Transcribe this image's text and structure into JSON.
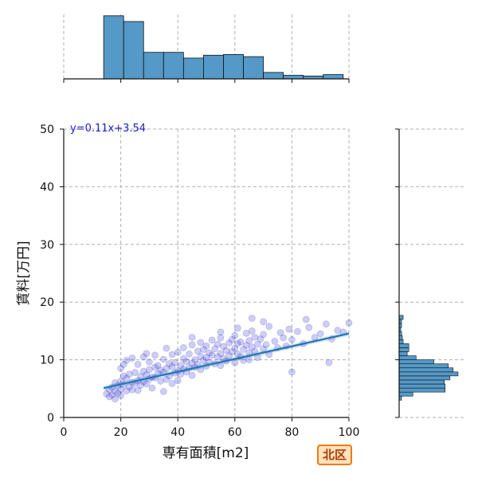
{
  "chart_data": [
    {
      "type": "scatter",
      "role": "joint",
      "xlabel": "専有面積[m2]",
      "ylabel": "賃料[万円]",
      "xlim": [
        0,
        100
      ],
      "ylim": [
        0,
        50
      ],
      "x_ticks": [
        "0",
        "20",
        "40",
        "60",
        "80",
        "100"
      ],
      "y_ticks": [
        "0",
        "10",
        "20",
        "30",
        "40",
        "50"
      ],
      "grid": true,
      "regression": {
        "equation": "y=0.11x+3.54",
        "slope": 0.11,
        "intercept": 3.54,
        "x_range": [
          14,
          100
        ],
        "color": "#1f77b4"
      },
      "point_color": "#3b3bd4",
      "points": [
        [
          15,
          4.1
        ],
        [
          16,
          3.6
        ],
        [
          16,
          4.8
        ],
        [
          17,
          5.2
        ],
        [
          17,
          3.9
        ],
        [
          18,
          4.5
        ],
        [
          18,
          6.0
        ],
        [
          18,
          3.2
        ],
        [
          19,
          5.5
        ],
        [
          19,
          4.2
        ],
        [
          20,
          6.3
        ],
        [
          20,
          4.9
        ],
        [
          20,
          8.5
        ],
        [
          20,
          3.8
        ],
        [
          21,
          5.7
        ],
        [
          21,
          7.2
        ],
        [
          22,
          4.6
        ],
        [
          22,
          6.8
        ],
        [
          22,
          9.9
        ],
        [
          23,
          5.3
        ],
        [
          23,
          7.5
        ],
        [
          24,
          4.8
        ],
        [
          24,
          6.1
        ],
        [
          24,
          10.3
        ],
        [
          25,
          5.9
        ],
        [
          25,
          7.8
        ],
        [
          26,
          6.4
        ],
        [
          26,
          4.7
        ],
        [
          26,
          9.2
        ],
        [
          27,
          7.1
        ],
        [
          27,
          5.6
        ],
        [
          28,
          8.0
        ],
        [
          28,
          6.2
        ],
        [
          28,
          10.5
        ],
        [
          29,
          7.4
        ],
        [
          29,
          5.8
        ],
        [
          30,
          8.3
        ],
        [
          30,
          6.7
        ],
        [
          30,
          9.6
        ],
        [
          31,
          7.0
        ],
        [
          31,
          5.1
        ],
        [
          32,
          8.7
        ],
        [
          32,
          6.9
        ],
        [
          32,
          10.8
        ],
        [
          33,
          7.6
        ],
        [
          33,
          9.0
        ],
        [
          34,
          6.3
        ],
        [
          34,
          8.2
        ],
        [
          35,
          7.8
        ],
        [
          35,
          4.5
        ],
        [
          35,
          10.1
        ],
        [
          36,
          8.5
        ],
        [
          36,
          6.6
        ],
        [
          37,
          9.3
        ],
        [
          37,
          7.2
        ],
        [
          38,
          8.8
        ],
        [
          38,
          10.9
        ],
        [
          38,
          5.9
        ],
        [
          39,
          7.7
        ],
        [
          39,
          9.5
        ],
        [
          40,
          8.1
        ],
        [
          40,
          6.4
        ],
        [
          40,
          11.3
        ],
        [
          41,
          9.0
        ],
        [
          41,
          7.5
        ],
        [
          42,
          10.2
        ],
        [
          42,
          8.4
        ],
        [
          42,
          12.1
        ],
        [
          43,
          7.9
        ],
        [
          43,
          9.7
        ],
        [
          44,
          8.6
        ],
        [
          44,
          11.0
        ],
        [
          45,
          9.4
        ],
        [
          45,
          7.3
        ],
        [
          45,
          12.6
        ],
        [
          46,
          10.0
        ],
        [
          46,
          8.7
        ],
        [
          47,
          11.5
        ],
        [
          47,
          9.2
        ],
        [
          48,
          10.6
        ],
        [
          48,
          8.3
        ],
        [
          48,
          13.0
        ],
        [
          49,
          9.9
        ],
        [
          49,
          11.8
        ],
        [
          50,
          10.4
        ],
        [
          50,
          8.9
        ],
        [
          50,
          12.4
        ],
        [
          51,
          9.6
        ],
        [
          51,
          11.2
        ],
        [
          52,
          10.8
        ],
        [
          52,
          13.4
        ],
        [
          53,
          9.3
        ],
        [
          53,
          11.9
        ],
        [
          54,
          10.5
        ],
        [
          54,
          12.7
        ],
        [
          55,
          11.1
        ],
        [
          55,
          9.0
        ],
        [
          55,
          13.8
        ],
        [
          56,
          10.2
        ],
        [
          56,
          12.3
        ],
        [
          57,
          11.6
        ],
        [
          57,
          9.8
        ],
        [
          58,
          12.9
        ],
        [
          58,
          10.7
        ],
        [
          59,
          11.4
        ],
        [
          59,
          13.5
        ],
        [
          60,
          12.0
        ],
        [
          60,
          9.5
        ],
        [
          60,
          14.2
        ],
        [
          61,
          11.0
        ],
        [
          61,
          12.8
        ],
        [
          62,
          10.6
        ],
        [
          62,
          13.1
        ],
        [
          63,
          11.8
        ],
        [
          63,
          9.9
        ],
        [
          64,
          12.5
        ],
        [
          64,
          14.6
        ],
        [
          65,
          11.2
        ],
        [
          65,
          13.3
        ],
        [
          65,
          10.0
        ],
        [
          66,
          12.2
        ],
        [
          66,
          15.0
        ],
        [
          67,
          11.5
        ],
        [
          67,
          13.9
        ],
        [
          68,
          12.7
        ],
        [
          68,
          10.4
        ],
        [
          69,
          13.6
        ],
        [
          70,
          11.9
        ],
        [
          70,
          14.4
        ],
        [
          71,
          12.6
        ],
        [
          72,
          15.8
        ],
        [
          72,
          10.9
        ],
        [
          74,
          13.2
        ],
        [
          75,
          12.1
        ],
        [
          76,
          14.7
        ],
        [
          77,
          13.8
        ],
        [
          78,
          12.4
        ],
        [
          79,
          15.3
        ],
        [
          80,
          13.5
        ],
        [
          80,
          7.9
        ],
        [
          82,
          14.9
        ],
        [
          84,
          12.8
        ],
        [
          86,
          15.6
        ],
        [
          88,
          13.9
        ],
        [
          90,
          14.5
        ],
        [
          92,
          16.2
        ],
        [
          94,
          13.6
        ],
        [
          96,
          15.1
        ],
        [
          98,
          14.8
        ],
        [
          100,
          16.4
        ],
        [
          66,
          17.2
        ],
        [
          70,
          16.6
        ],
        [
          85,
          17.0
        ],
        [
          93,
          9.5
        ],
        [
          61,
          15.5
        ],
        [
          55,
          14.8
        ],
        [
          45,
          13.9
        ],
        [
          36,
          12.0
        ],
        [
          29,
          11.1
        ],
        [
          21,
          9.2
        ]
      ]
    },
    {
      "type": "bar",
      "role": "x-marginal-histogram",
      "bin_edges": [
        14,
        21,
        28,
        35,
        42,
        49,
        56,
        63,
        70,
        77,
        84,
        91,
        98,
        100
      ],
      "values": [
        88,
        80,
        37,
        37,
        29,
        33,
        34,
        31,
        9,
        5,
        4,
        6,
        0
      ],
      "color": "#5499c7"
    },
    {
      "type": "bar",
      "role": "y-marginal-histogram",
      "bin_edges": [
        3,
        3.7,
        4.4,
        5.1,
        5.8,
        6.5,
        7.2,
        7.9,
        8.6,
        9.3,
        10.0,
        10.7,
        11.4,
        12.1,
        12.8,
        13.5,
        14.2,
        14.9,
        15.6,
        16.3,
        17.0,
        17.7
      ],
      "values": [
        3,
        17,
        57,
        57,
        56,
        63,
        73,
        67,
        61,
        43,
        21,
        10,
        12,
        12,
        5,
        4,
        3,
        2,
        3,
        3,
        5
      ],
      "color": "#5499c7"
    }
  ],
  "badge": {
    "text": "北区"
  }
}
